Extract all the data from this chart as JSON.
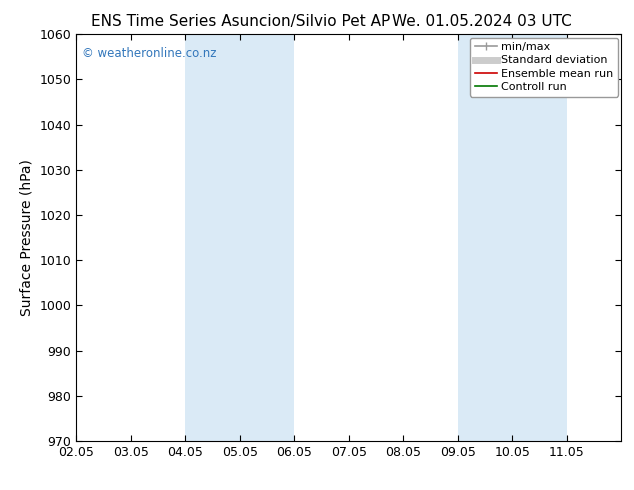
{
  "title_left": "ENS Time Series Asuncion/Silvio Pet AP",
  "title_right": "We. 01.05.2024 03 UTC",
  "ylabel": "Surface Pressure (hPa)",
  "ylim": [
    970,
    1060
  ],
  "yticks": [
    970,
    980,
    990,
    1000,
    1010,
    1020,
    1030,
    1040,
    1050,
    1060
  ],
  "xlim_min": 0.0,
  "xlim_max": 10.0,
  "xtick_labels": [
    "02.05",
    "03.05",
    "04.05",
    "05.05",
    "06.05",
    "07.05",
    "08.05",
    "09.05",
    "10.05",
    "11.05"
  ],
  "xtick_positions": [
    0,
    1,
    2,
    3,
    4,
    5,
    6,
    7,
    8,
    9
  ],
  "shaded_regions": [
    {
      "xmin": 2.0,
      "xmax": 3.0,
      "color": "#daeaf6"
    },
    {
      "xmin": 3.0,
      "xmax": 4.0,
      "color": "#daeaf6"
    },
    {
      "xmin": 7.0,
      "xmax": 8.0,
      "color": "#daeaf6"
    },
    {
      "xmin": 8.0,
      "xmax": 9.0,
      "color": "#daeaf6"
    }
  ],
  "watermark_text": "© weatheronline.co.nz",
  "watermark_color": "#3377bb",
  "background_color": "#ffffff",
  "legend_items": [
    {
      "label": "min/max",
      "color": "#999999",
      "lw": 1.2
    },
    {
      "label": "Standard deviation",
      "color": "#cccccc",
      "lw": 5
    },
    {
      "label": "Ensemble mean run",
      "color": "#cc0000",
      "lw": 1.2
    },
    {
      "label": "Controll run",
      "color": "#007700",
      "lw": 1.2
    }
  ],
  "title_fontsize": 11,
  "axis_label_fontsize": 10,
  "tick_fontsize": 9,
  "legend_fontsize": 8
}
